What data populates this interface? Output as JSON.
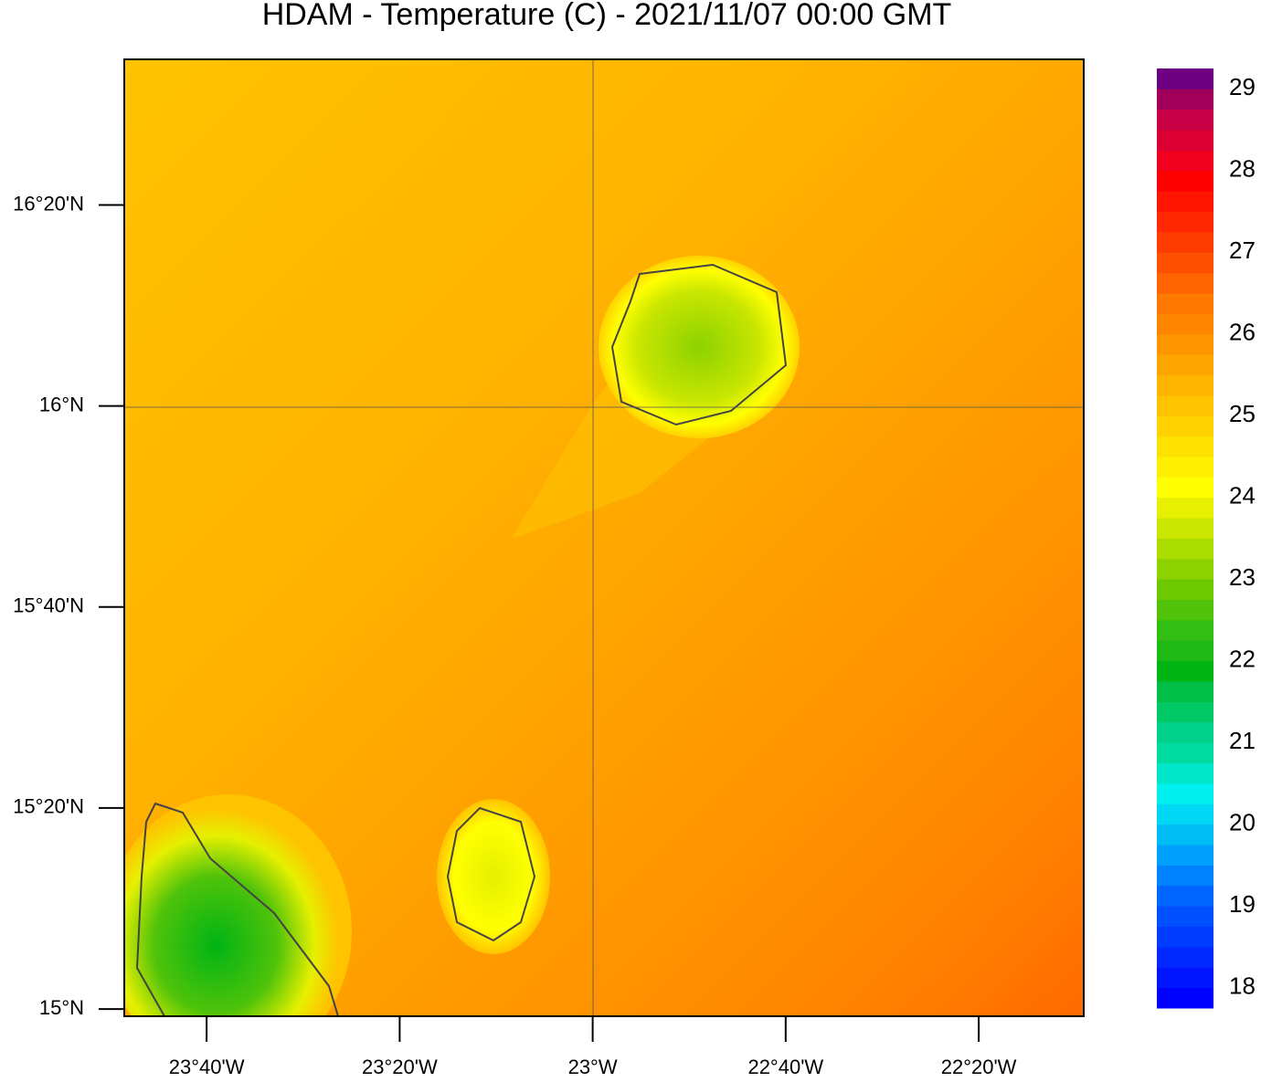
{
  "chart_data": {
    "type": "map",
    "title": "HDAM - Temperature (C)  -  2021/11/07  00:00 GMT",
    "xlim": [
      -23.8089,
      -22.152
    ],
    "ylim": [
      14.988,
      16.5747
    ],
    "xticks": [
      {
        "value": -23.6667,
        "label": "23°40'W"
      },
      {
        "value": -23.3333,
        "label": "23°20'W"
      },
      {
        "value": -23,
        "label": "23°W"
      },
      {
        "value": -22.6667,
        "label": "22°40'W"
      },
      {
        "value": -22.3333,
        "label": "22°20'W"
      }
    ],
    "yticks": [
      {
        "value": 15,
        "label": "15°N"
      },
      {
        "value": 15.3333,
        "label": "15°20'N"
      },
      {
        "value": 15.6667,
        "label": "15°40'N"
      },
      {
        "value": 16,
        "label": "16°N"
      },
      {
        "value": 16.3333,
        "label": "16°20'N"
      }
    ],
    "colorbar": {
      "lim": [
        17.75,
        29.25
      ],
      "ticks": [
        18,
        19,
        20,
        21,
        22,
        23,
        24,
        25,
        26,
        27,
        28,
        29
      ],
      "colors": [
        "#0000ff",
        "#0014ff",
        "#0028ff",
        "#003cff",
        "#0050ff",
        "#0064ff",
        "#0082ff",
        "#00a0ff",
        "#00bef5",
        "#00d7f5",
        "#00f0f0",
        "#00e6c8",
        "#00dca0",
        "#00d28c",
        "#00c864",
        "#00be46",
        "#00b414",
        "#1eb914",
        "#32be14",
        "#50c30a",
        "#6ec800",
        "#8cd200",
        "#aadc00",
        "#c8e600",
        "#e6f000",
        "#ffff00",
        "#fff000",
        "#ffe100",
        "#ffd200",
        "#ffc300",
        "#ffb400",
        "#ffa500",
        "#ff9600",
        "#ff8700",
        "#ff7800",
        "#ff6400",
        "#ff5000",
        "#ff3c00",
        "#ff2800",
        "#ff1400",
        "#ff0000",
        "#f0001e",
        "#dc0032",
        "#c80046",
        "#a0005a",
        "#6e0082"
      ]
    }
  }
}
